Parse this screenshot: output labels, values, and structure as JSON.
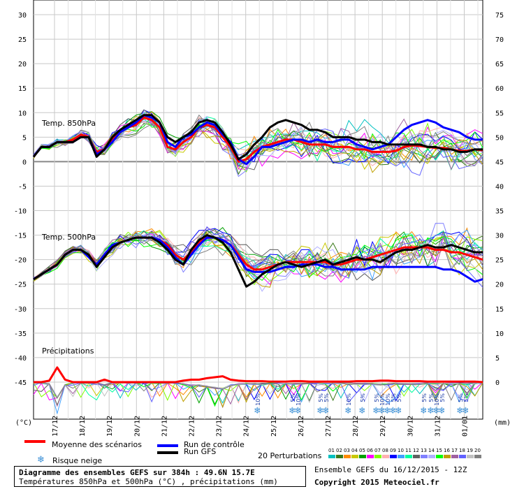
{
  "chart_data": {
    "type": "line",
    "title": "Diagramme des ensembles GEFS sur 384h : 49.6N 15.7E",
    "subtitle": "Températures 850hPa et 500hPa (°C) , précipitations (mm)",
    "left_axis": {
      "label": "(°C)",
      "ticks": [
        30,
        25,
        20,
        15,
        10,
        5,
        0,
        -5,
        -10,
        -15,
        -20,
        -25,
        -30,
        -35,
        -40,
        -45
      ],
      "range": [
        -45,
        30
      ]
    },
    "right_axis": {
      "label": "(mm)",
      "ticks": [
        75,
        70,
        65,
        60,
        55,
        50,
        45,
        40,
        35,
        30,
        25,
        20,
        15,
        10,
        5,
        0
      ],
      "range": [
        0,
        75
      ]
    },
    "x_ticks": [
      "17/12",
      "18/12",
      "19/12",
      "20/12",
      "21/12",
      "22/12",
      "23/12",
      "24/12",
      "25/12",
      "26/12",
      "27/12",
      "28/12",
      "29/12",
      "30/12",
      "31/12",
      "01/01"
    ],
    "panels": [
      {
        "label": "Temp. 850hPa"
      },
      {
        "label": "Temp. 500hPa"
      },
      {
        "label": "Précipitations"
      }
    ],
    "series": [
      {
        "name": "Moyenne des scénarios",
        "color": "#ff0000",
        "panel": "850",
        "values": [
          1,
          3,
          3,
          4,
          4,
          4.5,
          5.5,
          5,
          2,
          2.5,
          4.5,
          6,
          7,
          7.5,
          9,
          8.5,
          7,
          3,
          2.5,
          4,
          5,
          7,
          7.5,
          7,
          5,
          3,
          0,
          0.5,
          2,
          3,
          3.5,
          4,
          4.5,
          4.5,
          4,
          3.5,
          3.5,
          3.5,
          3,
          3,
          3,
          2.5,
          2.5,
          2,
          2,
          2,
          2.2,
          3,
          3.3,
          3.2,
          3,
          2.8,
          2.8,
          2.5,
          2.2,
          2.2,
          2.5,
          2.3
        ]
      },
      {
        "name": "Run de contrôle",
        "color": "#0000ff",
        "panel": "850",
        "values": [
          1,
          3,
          3,
          4,
          4,
          4,
          5,
          5,
          1.5,
          2.5,
          4,
          6,
          7,
          8,
          9.5,
          9,
          8,
          4,
          3,
          5,
          5.5,
          7,
          8,
          7.5,
          5.5,
          4,
          0.5,
          -0.5,
          1,
          3,
          3,
          3.5,
          4,
          4.5,
          4.5,
          4,
          4.5,
          4,
          4,
          4.5,
          4.5,
          3.5,
          3,
          2.5,
          3,
          3.5,
          5,
          6.5,
          7.5,
          8,
          8.5,
          8,
          7,
          6.5,
          6,
          5,
          4.5,
          4.5
        ]
      },
      {
        "name": "Run GFS",
        "color": "#000000",
        "panel": "850",
        "values": [
          1,
          3,
          3,
          4,
          4,
          4,
          5,
          5,
          1,
          2.5,
          5,
          6.5,
          7.5,
          8.5,
          9.5,
          9.5,
          8,
          5,
          4,
          5,
          6,
          8,
          8.5,
          8,
          6,
          3.5,
          0.5,
          1.5,
          3.5,
          5,
          7,
          8,
          8.5,
          8,
          7.5,
          6.5,
          6.5,
          6,
          5,
          5,
          5,
          4.5,
          4.5,
          4,
          4,
          3.5,
          3.5,
          3.5,
          3.5,
          3.5,
          3,
          3,
          2.5,
          2.5,
          2,
          2,
          2.5,
          2.5
        ]
      },
      {
        "name": "Moyenne des scénarios",
        "color": "#ff0000",
        "panel": "500",
        "values": [
          -24,
          -23,
          -22,
          -21,
          -19,
          -18,
          -18,
          -19,
          -21,
          -19,
          -17.5,
          -16.5,
          -16,
          -15.5,
          -15.5,
          -15.5,
          -16,
          -17,
          -19,
          -20,
          -18.5,
          -16.5,
          -15.5,
          -15.5,
          -16,
          -17,
          -19,
          -21,
          -22,
          -22,
          -21.5,
          -21,
          -20.5,
          -20.5,
          -20.5,
          -20.5,
          -20.5,
          -20.5,
          -21,
          -21,
          -20.5,
          -20,
          -20,
          -19.5,
          -19,
          -18.5,
          -18,
          -17.5,
          -17.5,
          -17.5,
          -17.5,
          -18,
          -18,
          -18.5,
          -18.5,
          -19,
          -19.5,
          -20
        ]
      },
      {
        "name": "Run de contrôle",
        "color": "#0000ff",
        "panel": "500",
        "values": [
          -24,
          -23,
          -22,
          -21,
          -19,
          -18,
          -18,
          -19.5,
          -21,
          -19,
          -17,
          -16.5,
          -16,
          -15.5,
          -15.5,
          -15.5,
          -16,
          -17.5,
          -19.5,
          -21,
          -19,
          -17,
          -15.5,
          -15.5,
          -16,
          -17,
          -19.5,
          -22,
          -22.5,
          -22.5,
          -22.5,
          -22,
          -21.5,
          -21.5,
          -21,
          -21,
          -21,
          -21.5,
          -21.5,
          -22,
          -22,
          -22,
          -22,
          -21.5,
          -21.5,
          -21.5,
          -21.5,
          -21.5,
          -21.5,
          -21.5,
          -21.5,
          -21.5,
          -22,
          -22,
          -22.5,
          -23.5,
          -24.5,
          -24
        ]
      },
      {
        "name": "Run GFS",
        "color": "#000000",
        "panel": "500",
        "values": [
          -24,
          -23,
          -22,
          -21,
          -19,
          -18,
          -18,
          -19,
          -21.5,
          -19.5,
          -17.5,
          -16.5,
          -16,
          -15.5,
          -15.5,
          -15.5,
          -16.5,
          -18,
          -20,
          -21,
          -18,
          -16,
          -15,
          -15.5,
          -16.5,
          -18.5,
          -22,
          -25.5,
          -24.5,
          -23,
          -22,
          -21,
          -20.5,
          -21,
          -21.5,
          -21,
          -20.5,
          -20,
          -21,
          -20.5,
          -20,
          -19.5,
          -20,
          -20,
          -20.5,
          -19.5,
          -18.5,
          -18,
          -18,
          -17.5,
          -17,
          -17.5,
          -17.5,
          -17,
          -17.5,
          -18,
          -18.5,
          -18.5
        ]
      },
      {
        "name": "Moyenne des scénarios",
        "color": "#ff0000",
        "panel": "precip",
        "values": [
          0,
          0,
          0.3,
          3,
          0.5,
          0,
          0,
          0,
          0,
          0.5,
          0,
          0,
          0,
          0,
          0,
          0,
          0,
          0,
          0,
          0.3,
          0.5,
          0.5,
          0.8,
          1,
          1.2,
          0.5,
          0.3,
          0.2,
          0.2,
          0.2,
          0.1,
          0.1,
          0.1,
          0.2,
          0.2,
          0.1,
          0.1,
          0.1,
          0.1,
          0.1,
          0.1,
          0.2,
          0.2,
          0.2,
          0.3,
          0.3,
          0.2,
          0.2,
          0.2,
          0.2,
          0.1,
          0.1,
          0.1,
          0.1,
          0.1,
          0.1,
          0.1,
          0
        ]
      }
    ],
    "snow_risk": [
      {
        "date_index": 24,
        "pct": "10%"
      },
      {
        "date_index": 26.5,
        "pct": "5%"
      },
      {
        "date_index": 27,
        "pct": "10%"
      },
      {
        "date_index": 29.3,
        "pct": "5%"
      },
      {
        "date_index": 29.7,
        "pct": "5%"
      },
      {
        "date_index": 32,
        "pct": "10%"
      },
      {
        "date_index": 33.3,
        "pct": "5%"
      },
      {
        "date_index": 35,
        "pct": "5%"
      },
      {
        "date_index": 35.6,
        "pct": "10%"
      },
      {
        "date_index": 36.2,
        "pct": "10%"
      },
      {
        "date_index": 36.8,
        "pct": "5%"
      },
      {
        "date_index": 37.4,
        "pct": "5%"
      },
      {
        "date_index": 40,
        "pct": "5%"
      },
      {
        "date_index": 40.8,
        "pct": "5%"
      },
      {
        "date_index": 41.6,
        "pct": "10%"
      },
      {
        "date_index": 42.3,
        "pct": "5%"
      },
      {
        "date_index": 44.6,
        "pct": "5%"
      },
      {
        "date_index": 45.3,
        "pct": "5%"
      }
    ],
    "grid": true
  },
  "legend": {
    "mean_label": "Moyenne des scénarios",
    "control_label": "Run de contrôle",
    "gfs_label": "Run GFS",
    "snow_label": "Risque neige",
    "perturbations_label": "20 Perturbations",
    "perturbation_numbers": [
      "01",
      "02",
      "03",
      "04",
      "05",
      "06",
      "07",
      "08",
      "09",
      "10",
      "11",
      "12",
      "13",
      "14",
      "15",
      "16",
      "17",
      "18",
      "19",
      "20"
    ],
    "perturbation_colors": [
      "#00c0c0",
      "#3a7a1a",
      "#ff8c00",
      "#c8c800",
      "#00a000",
      "#ff00ff",
      "#80ff00",
      "#ffb0b0",
      "#0000ff",
      "#40a0ff",
      "#00ffa0",
      "#606060",
      "#8080ff",
      "#b0b0ff",
      "#00ff00",
      "#c0a000",
      "#a060a0",
      "#6060ff",
      "#c0c0c0",
      "#808080"
    ]
  },
  "footer": {
    "title": "Diagramme des ensembles GEFS sur 384h : 49.6N 15.7E",
    "subtitle": "Températures 850hPa et 500hPa (°C) , précipitations (mm)",
    "run_info": "Ensemble GEFS du 16/12/2015 - 12Z",
    "copyright": "Copyright 2015 Meteociel.fr"
  }
}
